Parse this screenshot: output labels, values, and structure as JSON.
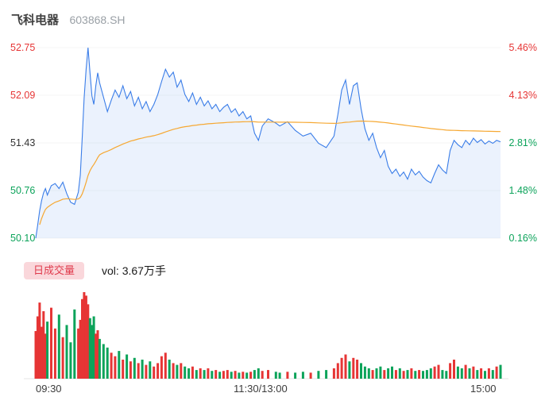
{
  "header": {
    "stock_name": "飞科电器",
    "stock_code": "603868.SH"
  },
  "colors": {
    "up": "#e63535",
    "down": "#0ca35a",
    "neutral": "#333333",
    "price_line": "#3a7de8",
    "avg_line": "#f6a832",
    "area_fill": "rgba(58,125,232,0.10)",
    "pill_bg": "#fad7db",
    "pill_text": "#e03c4e",
    "grid": "#f5f5f5"
  },
  "volume_section": {
    "legend_label": "日成交量",
    "volume_text": "vol: 3.67万手"
  },
  "chart_data": {
    "type": "line",
    "title": "飞科电器 603868.SH 分时走势",
    "x_axis_labels": [
      "09:30",
      "11:30/13:00",
      "15:00"
    ],
    "y_axis_left": [
      {
        "text": "52.75",
        "color": "up"
      },
      {
        "text": "52.09",
        "color": "up"
      },
      {
        "text": "51.43",
        "color": "neutral"
      },
      {
        "text": "50.76",
        "color": "down"
      },
      {
        "text": "50.10",
        "color": "down"
      }
    ],
    "y_axis_right": [
      {
        "text": "5.46%",
        "color": "up"
      },
      {
        "text": "4.13%",
        "color": "up"
      },
      {
        "text": "2.81%",
        "color": "down"
      },
      {
        "text": "1.48%",
        "color": "down"
      },
      {
        "text": "0.16%",
        "color": "down"
      }
    ],
    "price_min": 50.1,
    "price_max": 52.75,
    "minutes_total": 240,
    "legend": [
      "price",
      "average-price",
      "volume"
    ],
    "columns": [
      "minute",
      "price",
      "volume_relative"
    ],
    "points": [
      [
        0,
        50.1,
        55
      ],
      [
        1,
        50.28,
        72
      ],
      [
        2,
        50.48,
        88
      ],
      [
        3,
        50.62,
        60
      ],
      [
        4,
        50.73,
        78
      ],
      [
        5,
        50.79,
        52
      ],
      [
        6,
        50.7,
        66
      ],
      [
        8,
        50.83,
        82
      ],
      [
        10,
        50.86,
        58
      ],
      [
        12,
        50.79,
        74
      ],
      [
        14,
        50.88,
        48
      ],
      [
        16,
        50.72,
        62
      ],
      [
        18,
        50.6,
        42
      ],
      [
        20,
        50.57,
        80
      ],
      [
        22,
        50.74,
        58
      ],
      [
        23,
        50.98,
        68
      ],
      [
        24,
        51.5,
        92
      ],
      [
        25,
        52.05,
        100
      ],
      [
        26,
        52.45,
        96
      ],
      [
        27,
        52.75,
        86
      ],
      [
        28,
        52.4,
        70
      ],
      [
        29,
        52.08,
        62
      ],
      [
        30,
        51.96,
        72
      ],
      [
        31,
        52.22,
        52
      ],
      [
        32,
        52.4,
        56
      ],
      [
        33,
        52.26,
        46
      ],
      [
        35,
        52.06,
        40
      ],
      [
        37,
        51.86,
        36
      ],
      [
        39,
        52.02,
        30
      ],
      [
        41,
        52.16,
        26
      ],
      [
        43,
        52.06,
        32
      ],
      [
        45,
        52.22,
        22
      ],
      [
        47,
        52.04,
        28
      ],
      [
        49,
        52.14,
        20
      ],
      [
        51,
        51.94,
        24
      ],
      [
        53,
        52.06,
        18
      ],
      [
        55,
        51.9,
        22
      ],
      [
        57,
        52.0,
        16
      ],
      [
        59,
        51.86,
        20
      ],
      [
        61,
        51.96,
        14
      ],
      [
        63,
        52.1,
        18
      ],
      [
        65,
        52.28,
        26
      ],
      [
        67,
        52.45,
        30
      ],
      [
        69,
        52.34,
        22
      ],
      [
        71,
        52.41,
        18
      ],
      [
        73,
        52.2,
        16
      ],
      [
        75,
        52.3,
        18
      ],
      [
        77,
        52.1,
        14
      ],
      [
        79,
        52.0,
        12
      ],
      [
        81,
        52.12,
        14
      ],
      [
        83,
        51.96,
        10
      ],
      [
        85,
        52.06,
        12
      ],
      [
        87,
        51.94,
        10
      ],
      [
        89,
        52.01,
        12
      ],
      [
        91,
        51.9,
        9
      ],
      [
        93,
        51.96,
        10
      ],
      [
        95,
        51.86,
        8
      ],
      [
        97,
        51.92,
        9
      ],
      [
        99,
        51.96,
        10
      ],
      [
        101,
        51.85,
        8
      ],
      [
        103,
        51.9,
        9
      ],
      [
        105,
        51.8,
        7
      ],
      [
        107,
        51.86,
        8
      ],
      [
        109,
        51.76,
        7
      ],
      [
        111,
        51.8,
        8
      ],
      [
        113,
        51.56,
        10
      ],
      [
        115,
        51.46,
        12
      ],
      [
        117,
        51.66,
        9
      ],
      [
        120,
        51.76,
        10
      ],
      [
        124,
        51.7,
        8
      ],
      [
        126,
        51.66,
        7
      ],
      [
        130,
        51.72,
        8
      ],
      [
        134,
        51.6,
        7
      ],
      [
        138,
        51.52,
        8
      ],
      [
        142,
        51.56,
        7
      ],
      [
        146,
        51.42,
        9
      ],
      [
        150,
        51.36,
        10
      ],
      [
        154,
        51.52,
        12
      ],
      [
        156,
        51.82,
        18
      ],
      [
        158,
        52.16,
        24
      ],
      [
        160,
        52.3,
        28
      ],
      [
        162,
        51.96,
        20
      ],
      [
        164,
        52.22,
        24
      ],
      [
        166,
        52.26,
        22
      ],
      [
        168,
        51.9,
        18
      ],
      [
        170,
        51.62,
        14
      ],
      [
        172,
        51.46,
        12
      ],
      [
        174,
        51.56,
        10
      ],
      [
        176,
        51.36,
        12
      ],
      [
        178,
        51.22,
        14
      ],
      [
        180,
        51.32,
        10
      ],
      [
        182,
        51.1,
        12
      ],
      [
        184,
        51.0,
        14
      ],
      [
        186,
        51.06,
        10
      ],
      [
        188,
        50.96,
        12
      ],
      [
        190,
        51.02,
        9
      ],
      [
        192,
        50.92,
        10
      ],
      [
        194,
        51.06,
        12
      ],
      [
        196,
        50.98,
        9
      ],
      [
        198,
        51.03,
        10
      ],
      [
        200,
        50.95,
        9
      ],
      [
        202,
        50.9,
        10
      ],
      [
        204,
        50.87,
        12
      ],
      [
        206,
        51.0,
        14
      ],
      [
        208,
        51.12,
        16
      ],
      [
        210,
        51.05,
        10
      ],
      [
        212,
        51.0,
        9
      ],
      [
        214,
        51.32,
        18
      ],
      [
        216,
        51.46,
        22
      ],
      [
        218,
        51.4,
        14
      ],
      [
        220,
        51.36,
        12
      ],
      [
        222,
        51.46,
        16
      ],
      [
        224,
        51.4,
        12
      ],
      [
        226,
        51.49,
        14
      ],
      [
        228,
        51.43,
        10
      ],
      [
        230,
        51.47,
        12
      ],
      [
        232,
        51.41,
        9
      ],
      [
        234,
        51.45,
        12
      ],
      [
        236,
        51.42,
        10
      ],
      [
        238,
        51.46,
        14
      ],
      [
        240,
        51.44,
        16
      ]
    ]
  }
}
